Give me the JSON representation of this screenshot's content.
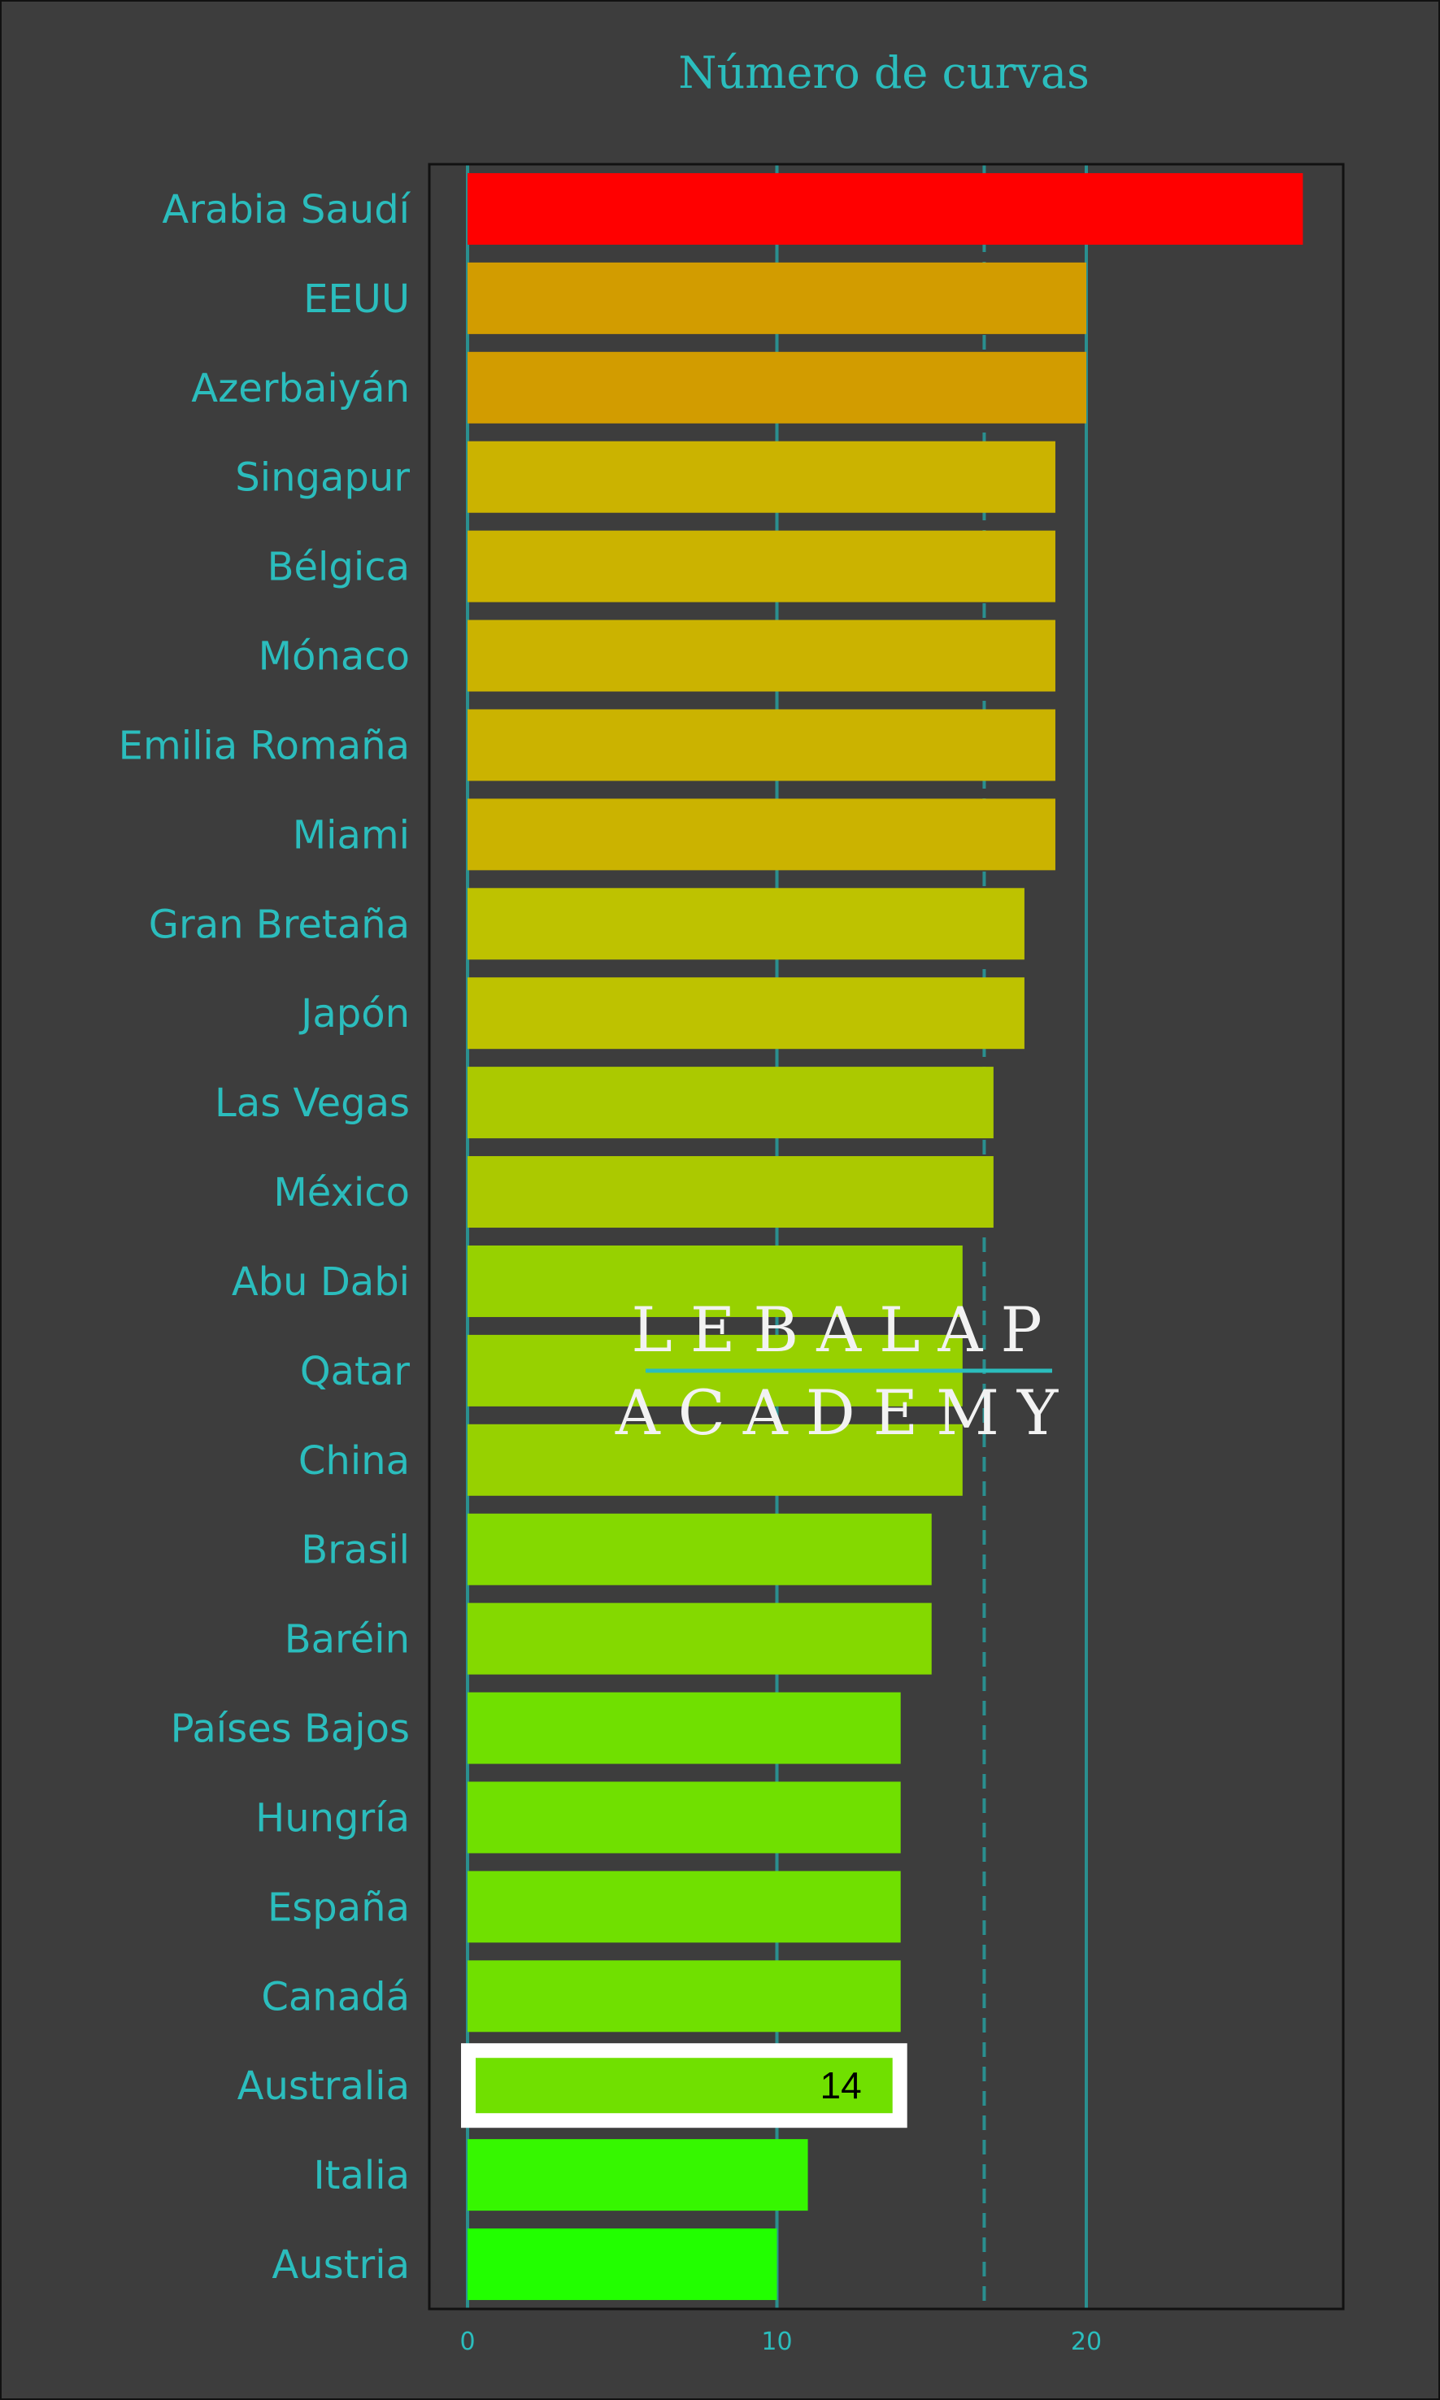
{
  "chart_data": {
    "type": "bar",
    "orientation": "horizontal",
    "title": "Número de curvas",
    "xlabel": "",
    "ylabel": "",
    "xlim": [
      -1.25,
      28.3
    ],
    "xticks": [
      0,
      10,
      20
    ],
    "gridlines_x": [
      0,
      10,
      20
    ],
    "reference_line": 16.7,
    "categories": [
      "Arabia Saudí",
      "EEUU",
      "Azerbaiyán",
      "Singapur",
      "Bélgica",
      "Mónaco",
      "Emilia Romaña",
      "Miami",
      "Gran Bretaña",
      "Japón",
      "Las Vegas",
      "México",
      "Abu Dabi",
      "Qatar",
      "China",
      "Brasil",
      "Baréin",
      "Países Bajos",
      "Hungría",
      "España",
      "Canadá",
      "Australia",
      "Italia",
      "Austria"
    ],
    "values": [
      27,
      20,
      20,
      19,
      19,
      19,
      19,
      19,
      18,
      18,
      17,
      17,
      16,
      16,
      16,
      15,
      15,
      14,
      14,
      14,
      14,
      14,
      11,
      10
    ],
    "highlight": {
      "category": "Australia",
      "label": "14"
    },
    "colors": {
      "background": "#3d3d3d",
      "accent": "#2bbdbd",
      "grid": "#2a8f8f",
      "high": "#ff0000",
      "low": "#22ff00"
    }
  },
  "watermark": {
    "line1": "LEBALAP",
    "line2": "ACADEMY"
  }
}
